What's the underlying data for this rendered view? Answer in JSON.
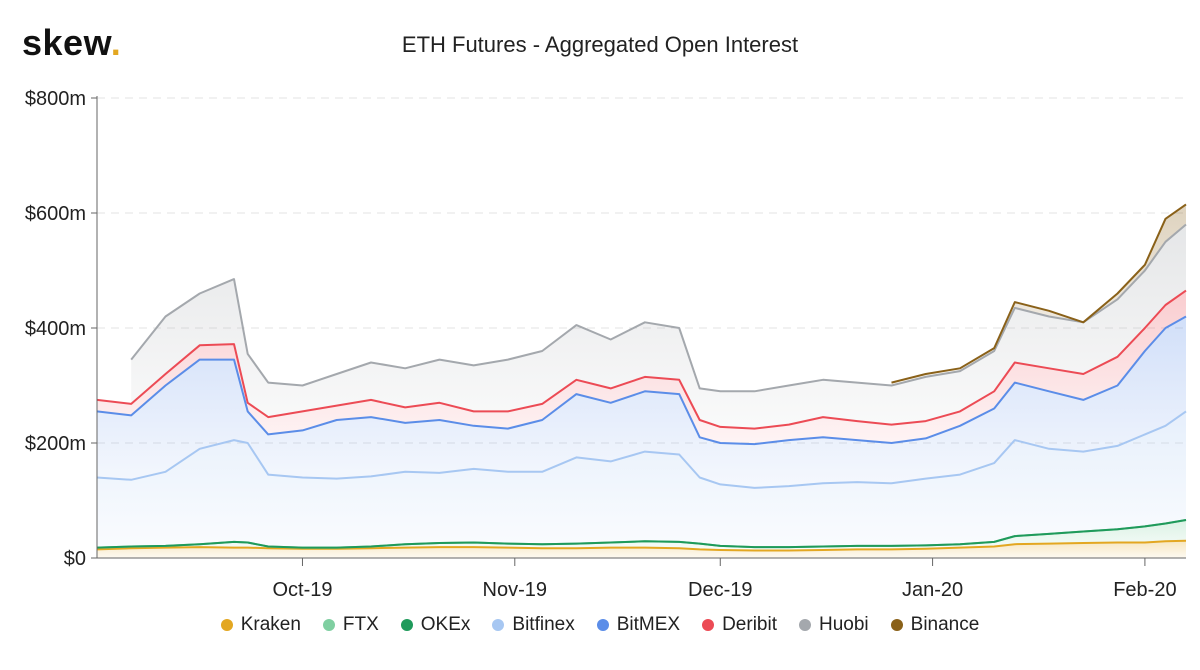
{
  "brand": {
    "name": "skew",
    "dot": "."
  },
  "chart_data": {
    "type": "area",
    "stacked": true,
    "title": "ETH Futures - Aggregated Open Interest",
    "xlabel": "",
    "ylabel": "",
    "ylim": [
      0,
      800
    ],
    "y_ticks": [
      {
        "value": 0,
        "label": "$0"
      },
      {
        "value": 200,
        "label": "$200m"
      },
      {
        "value": 400,
        "label": "$400m"
      },
      {
        "value": 600,
        "label": "$600m"
      },
      {
        "value": 800,
        "label": "$800m"
      }
    ],
    "x_ticks": [
      {
        "date": "2019-10-01",
        "label": "Oct-19"
      },
      {
        "date": "2019-11-01",
        "label": "Nov-19"
      },
      {
        "date": "2019-12-01",
        "label": "Dec-19"
      },
      {
        "date": "2020-01-01",
        "label": "Jan-20"
      },
      {
        "date": "2020-02-01",
        "label": "Feb-20"
      }
    ],
    "grid": "horizontal-dashed",
    "legend_position": "bottom",
    "x_dates": [
      "2019-09-01",
      "2019-09-06",
      "2019-09-11",
      "2019-09-16",
      "2019-09-21",
      "2019-09-23",
      "2019-09-26",
      "2019-10-01",
      "2019-10-06",
      "2019-10-11",
      "2019-10-16",
      "2019-10-21",
      "2019-10-26",
      "2019-10-31",
      "2019-11-05",
      "2019-11-10",
      "2019-11-15",
      "2019-11-20",
      "2019-11-25",
      "2019-11-28",
      "2019-12-01",
      "2019-12-06",
      "2019-12-11",
      "2019-12-16",
      "2019-12-21",
      "2019-12-26",
      "2019-12-31",
      "2020-01-05",
      "2020-01-10",
      "2020-01-13",
      "2020-01-18",
      "2020-01-23",
      "2020-01-28",
      "2020-02-01",
      "2020-02-04",
      "2020-02-07"
    ],
    "series": [
      {
        "name": "Kraken",
        "color": "#e3a721",
        "cumulative": [
          15,
          17,
          18,
          19,
          18,
          18,
          17,
          16,
          16,
          17,
          18,
          19,
          19,
          18,
          17,
          17,
          18,
          18,
          17,
          15,
          14,
          13,
          13,
          14,
          15,
          15,
          16,
          18,
          20,
          24,
          25,
          26,
          27,
          27,
          29,
          30
        ]
      },
      {
        "name": "FTX",
        "color": "#7fcfa1",
        "cumulative": [
          18,
          20,
          21,
          24,
          28,
          27,
          20,
          18,
          18,
          20,
          24,
          26,
          27,
          25,
          24,
          25,
          27,
          29,
          28,
          25,
          21,
          19,
          19,
          20,
          21,
          21,
          22,
          24,
          28,
          38,
          42,
          46,
          50,
          55,
          60,
          66
        ]
      },
      {
        "name": "OKEx",
        "color": "#1f9a5b",
        "cumulative": [
          18,
          20,
          21,
          24,
          28,
          27,
          20,
          18,
          18,
          20,
          24,
          26,
          27,
          25,
          24,
          25,
          27,
          29,
          28,
          25,
          21,
          19,
          19,
          20,
          21,
          21,
          22,
          24,
          28,
          38,
          42,
          46,
          50,
          55,
          60,
          66
        ]
      },
      {
        "name": "Bitfinex",
        "color": "#a7c7f2",
        "cumulative": [
          140,
          136,
          150,
          190,
          205,
          200,
          145,
          140,
          138,
          142,
          150,
          148,
          155,
          150,
          150,
          175,
          168,
          185,
          180,
          140,
          128,
          122,
          125,
          130,
          132,
          130,
          138,
          145,
          165,
          205,
          190,
          185,
          195,
          215,
          230,
          255
        ]
      },
      {
        "name": "BitMEX",
        "color": "#5b8de8",
        "cumulative": [
          255,
          248,
          300,
          345,
          345,
          255,
          215,
          222,
          240,
          245,
          235,
          240,
          230,
          225,
          240,
          285,
          270,
          290,
          285,
          210,
          200,
          198,
          205,
          210,
          205,
          200,
          208,
          230,
          260,
          305,
          290,
          275,
          300,
          360,
          400,
          420
        ]
      },
      {
        "name": "Deribit",
        "color": "#ec4b55",
        "cumulative": [
          275,
          268,
          320,
          370,
          372,
          270,
          245,
          255,
          265,
          275,
          262,
          270,
          255,
          255,
          268,
          310,
          295,
          315,
          310,
          240,
          228,
          225,
          232,
          245,
          238,
          232,
          238,
          255,
          290,
          340,
          330,
          320,
          350,
          400,
          440,
          465
        ]
      },
      {
        "name": "Huobi",
        "color": "#a4a8ad",
        "cumulative": [
          null,
          345,
          420,
          460,
          485,
          355,
          305,
          300,
          320,
          340,
          330,
          345,
          335,
          345,
          360,
          405,
          380,
          410,
          400,
          295,
          290,
          290,
          300,
          310,
          305,
          300,
          315,
          325,
          360,
          435,
          420,
          410,
          450,
          500,
          550,
          580
        ]
      },
      {
        "name": "Binance",
        "color": "#8a6119",
        "cumulative": [
          null,
          null,
          null,
          null,
          null,
          null,
          null,
          null,
          null,
          null,
          null,
          null,
          null,
          null,
          null,
          null,
          null,
          null,
          null,
          null,
          null,
          null,
          null,
          null,
          null,
          305,
          320,
          330,
          365,
          445,
          430,
          410,
          460,
          510,
          590,
          615
        ]
      }
    ]
  }
}
